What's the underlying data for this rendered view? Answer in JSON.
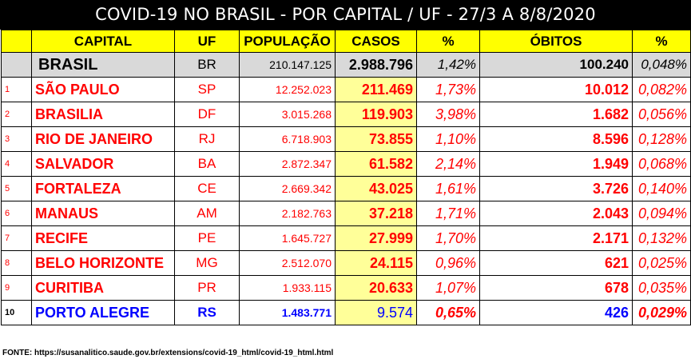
{
  "title": "COVID-19 NO BRASIL - POR CAPITAL / UF - 27/3 A 8/8/2020",
  "headers": {
    "capital": "CAPITAL",
    "uf": "UF",
    "populacao": "POPULAÇÃO",
    "casos": "CASOS",
    "pct_casos": "%",
    "obitos": "ÓBITOS",
    "pct_obitos": "%"
  },
  "total": {
    "capital": "BRASIL",
    "uf": "BR",
    "populacao": "210.147.125",
    "casos": "2.988.796",
    "pct_casos": "1,42%",
    "obitos": "100.240",
    "pct_obitos": "0,048%"
  },
  "rows": [
    {
      "num": "1",
      "capital": "SÃO PAULO",
      "uf": "SP",
      "populacao": "12.252.023",
      "casos": "211.469",
      "pct_casos": "1,73%",
      "obitos": "10.012",
      "pct_obitos": "0,082%"
    },
    {
      "num": "2",
      "capital": "BRASILIA",
      "uf": "DF",
      "populacao": "3.015.268",
      "casos": "119.903",
      "pct_casos": "3,98%",
      "obitos": "1.682",
      "pct_obitos": "0,056%"
    },
    {
      "num": "3",
      "capital": "RIO DE JANEIRO",
      "uf": "RJ",
      "populacao": "6.718.903",
      "casos": "73.855",
      "pct_casos": "1,10%",
      "obitos": "8.596",
      "pct_obitos": "0,128%"
    },
    {
      "num": "4",
      "capital": "SALVADOR",
      "uf": "BA",
      "populacao": "2.872.347",
      "casos": "61.582",
      "pct_casos": "2,14%",
      "obitos": "1.949",
      "pct_obitos": "0,068%"
    },
    {
      "num": "5",
      "capital": "FORTALEZA",
      "uf": "CE",
      "populacao": "2.669.342",
      "casos": "43.025",
      "pct_casos": "1,61%",
      "obitos": "3.726",
      "pct_obitos": "0,140%"
    },
    {
      "num": "6",
      "capital": "MANAUS",
      "uf": "AM",
      "populacao": "2.182.763",
      "casos": "37.218",
      "pct_casos": "1,71%",
      "obitos": "2.043",
      "pct_obitos": "0,094%"
    },
    {
      "num": "7",
      "capital": "RECIFE",
      "uf": "PE",
      "populacao": "1.645.727",
      "casos": "27.999",
      "pct_casos": "1,70%",
      "obitos": "2.171",
      "pct_obitos": "0,132%"
    },
    {
      "num": "8",
      "capital": "BELO HORIZONTE",
      "uf": "MG",
      "populacao": "2.512.070",
      "casos": "24.115",
      "pct_casos": "0,96%",
      "obitos": "621",
      "pct_obitos": "0,025%"
    },
    {
      "num": "9",
      "capital": "CURITIBA",
      "uf": "PR",
      "populacao": "1.933.115",
      "casos": "20.633",
      "pct_casos": "1,07%",
      "obitos": "678",
      "pct_obitos": "0,035%"
    },
    {
      "num": "10",
      "capital": "PORTO ALEGRE",
      "uf": "RS",
      "populacao": "1.483.771",
      "casos": "9.574",
      "pct_casos": "0,65%",
      "obitos": "426",
      "pct_obitos": "0,029%"
    }
  ],
  "source": "FONTE: https://susanalitico.saude.gov.br/extensions/covid-19_html/covid-19_html.html",
  "colors": {
    "header_bg": "#ffff00",
    "total_bg": "#d9d9d9",
    "casos_bg": "#ffff99",
    "text_red": "#ff0000",
    "text_blue": "#0000ff",
    "title_bg": "#000000"
  }
}
